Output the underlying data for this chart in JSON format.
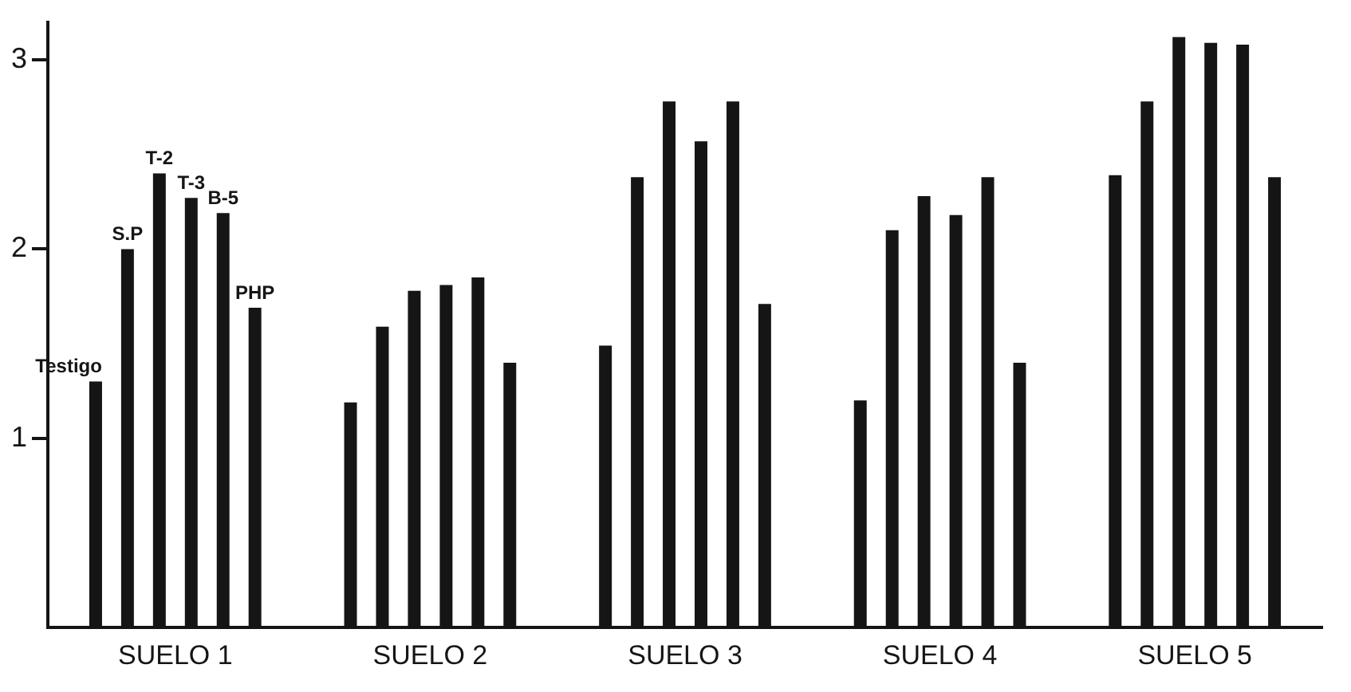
{
  "chart_data": {
    "type": "bar",
    "categories": [
      "SUELO 1",
      "SUELO 2",
      "SUELO 3",
      "SUELO 4",
      "SUELO 5"
    ],
    "series": [
      {
        "name": "Testigo",
        "color": "#151515",
        "values": [
          1.3,
          1.19,
          1.49,
          1.2,
          2.39
        ]
      },
      {
        "name": "S.P",
        "color": "#151515",
        "values": [
          2.0,
          1.59,
          2.38,
          2.1,
          2.78
        ]
      },
      {
        "name": "T-2",
        "color": "#151515",
        "values": [
          2.4,
          1.78,
          2.78,
          2.28,
          3.12
        ]
      },
      {
        "name": "T-3",
        "color": "#151515",
        "values": [
          2.27,
          1.81,
          2.57,
          2.18,
          3.09
        ]
      },
      {
        "name": "B-5",
        "color": "#151515",
        "values": [
          2.19,
          1.85,
          2.78,
          2.38,
          3.08
        ]
      },
      {
        "name": "PHP",
        "color": "#151515",
        "values": [
          1.69,
          1.4,
          1.71,
          1.4,
          2.38
        ]
      }
    ],
    "ylim": [
      0,
      3.2
    ],
    "yticks": [
      1,
      2,
      3
    ],
    "grid": false,
    "legend": false
  }
}
